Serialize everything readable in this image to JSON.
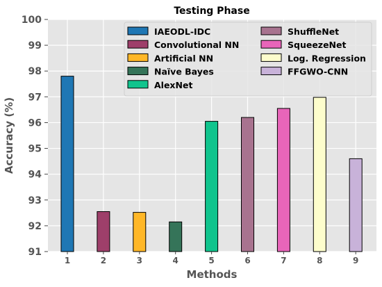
{
  "chart_data": {
    "type": "bar",
    "title": "Testing Phase",
    "xlabel": "Methods",
    "ylabel": "Accuracy (%)",
    "categories": [
      "1",
      "2",
      "3",
      "4",
      "5",
      "6",
      "7",
      "8",
      "9"
    ],
    "ylim": [
      91,
      100
    ],
    "yticks": [
      91,
      92,
      93,
      94,
      95,
      96,
      97,
      98,
      99,
      100
    ],
    "grid": true,
    "legend_position": "top",
    "series": [
      {
        "name": "IAEODL-IDC",
        "category": "1",
        "value": 97.8,
        "color": "#1f77b4"
      },
      {
        "name": "Convolutional NN",
        "category": "2",
        "value": 92.55,
        "color": "#9e3f6a"
      },
      {
        "name": "Artificial NN",
        "category": "3",
        "value": 92.52,
        "color": "#ffb727"
      },
      {
        "name": "Naïve Bayes",
        "category": "4",
        "value": 92.15,
        "color": "#357459"
      },
      {
        "name": "AlexNet",
        "category": "5",
        "value": 96.05,
        "color": "#10c48d"
      },
      {
        "name": "ShuffleNet",
        "category": "6",
        "value": 96.2,
        "color": "#a8738f"
      },
      {
        "name": "SqueezeNet",
        "category": "7",
        "value": 96.55,
        "color": "#e865b9"
      },
      {
        "name": "Log. Regression",
        "category": "8",
        "value": 96.98,
        "color": "#fdfdcc"
      },
      {
        "name": "FFGWO-CNN",
        "category": "9",
        "value": 94.6,
        "color": "#c8b2d9"
      }
    ]
  }
}
